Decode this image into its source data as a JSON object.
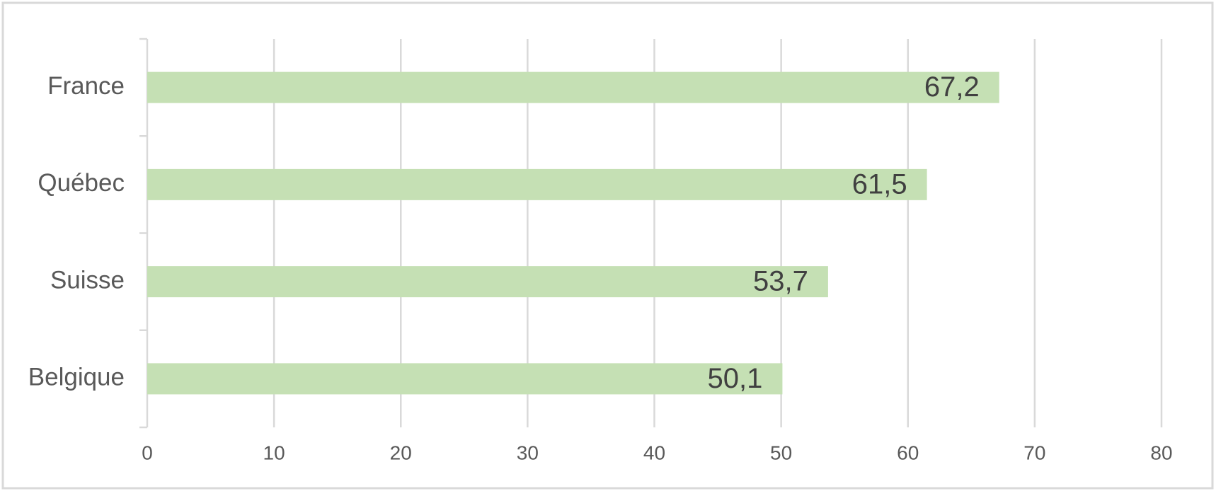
{
  "chart_data": {
    "type": "bar",
    "orientation": "horizontal",
    "categories": [
      "France",
      "Québec",
      "Suisse",
      "Belgique"
    ],
    "values": [
      67.2,
      61.5,
      53.7,
      50.1
    ],
    "value_labels": [
      "67,2",
      "61,5",
      "53,7",
      "50,1"
    ],
    "color": "#c5e0b4",
    "xlim": [
      0,
      80
    ],
    "xticks": [
      0,
      10,
      20,
      30,
      40,
      50,
      60,
      70,
      80
    ],
    "grid": true
  }
}
